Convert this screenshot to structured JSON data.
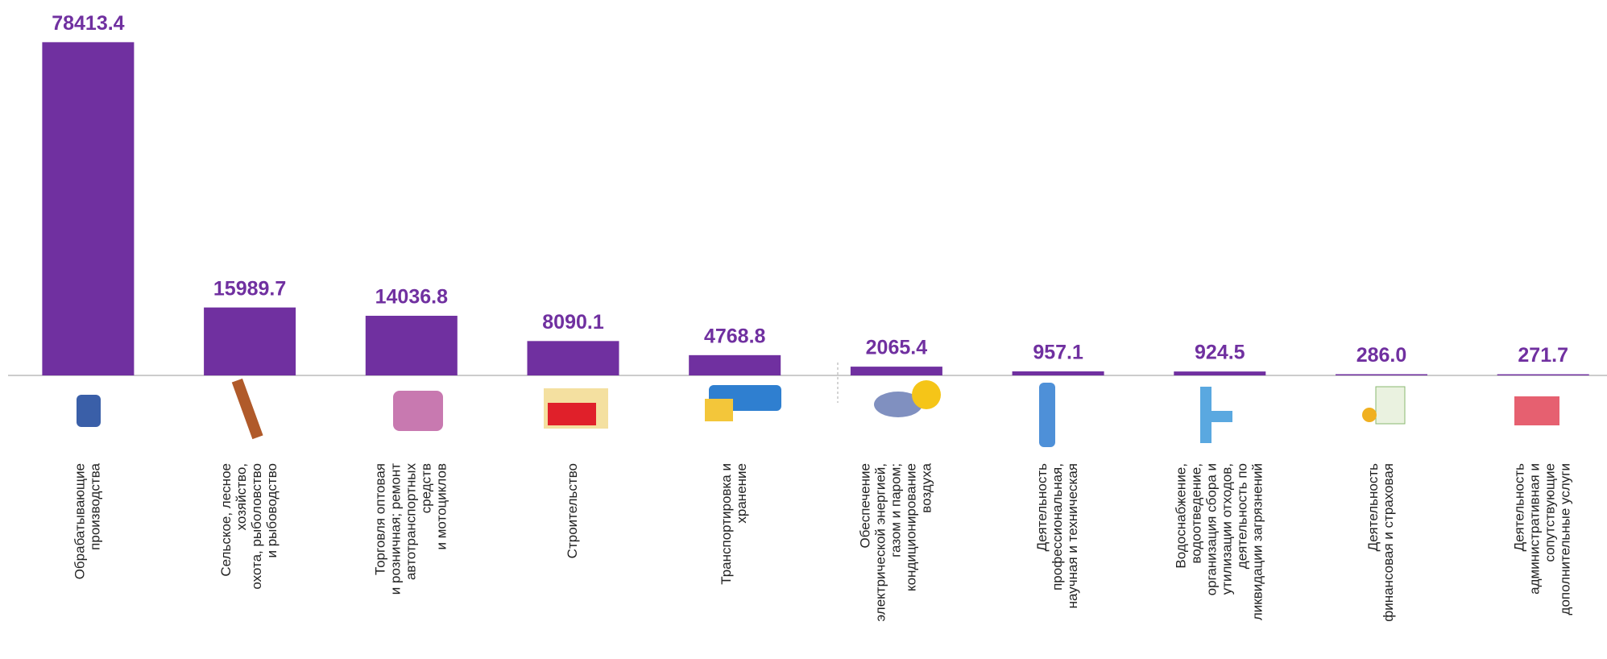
{
  "chart_data": {
    "type": "bar",
    "categories": [
      [
        "Обрабатывающие",
        "производства"
      ],
      [
        "Сельское, лесное",
        "хозяйство,",
        "охота, рыболовство",
        "и  рыбоводство"
      ],
      [
        "Торговля оптовая",
        "и розничная; ремонт",
        "автотранспортных",
        "средств",
        "и мотоциклов"
      ],
      [
        "Строительство"
      ],
      [
        "Транспортировка и",
        "хранение"
      ],
      [
        "Обеспечение",
        "электрической энергией,",
        "газом и паром;",
        "кондиционирование",
        "воздуха"
      ],
      [
        "Деятельность",
        "профессиональная,",
        "научная и техническая"
      ],
      [
        "Водоснабжение,",
        "водоотведение,",
        "организация сбора и",
        "утилизации отходов,",
        "деятельность по",
        "ликвидации загрязнений"
      ],
      [
        "Деятельность",
        "финансовая и страховая"
      ],
      [
        "Деятельность",
        "административная и",
        "сопутствующие",
        "дополнительные услуги"
      ]
    ],
    "values": [
      78413.4,
      15989.7,
      14036.8,
      8090.1,
      4768.8,
      2065.4,
      957.1,
      924.5,
      286.0,
      271.7
    ],
    "value_labels": [
      "78413.4",
      "15989.7",
      "14036.8",
      "8090.1",
      "4768.8",
      "2065.4",
      "957.1",
      "924.5",
      "286.0",
      "271.7"
    ],
    "color": "#7030a0",
    "ylim": [
      0,
      80000
    ]
  }
}
